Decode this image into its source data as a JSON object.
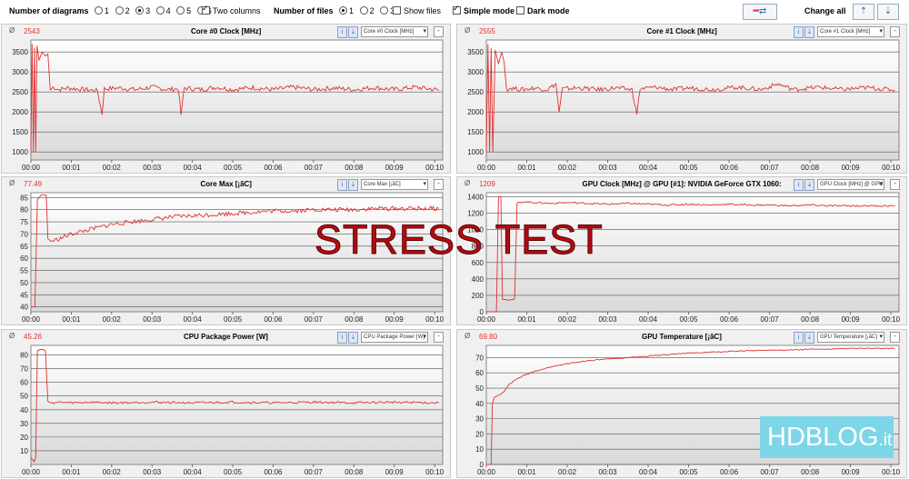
{
  "toolbar": {
    "num_diagrams_label": "Number of diagrams",
    "diagram_options": [
      "1",
      "2",
      "3",
      "4",
      "5",
      "6"
    ],
    "diagram_selected": "3",
    "two_columns_label": "Two columns",
    "two_columns_checked": true,
    "num_files_label": "Number of files",
    "file_options": [
      "1",
      "2",
      "3"
    ],
    "file_selected": "1",
    "show_files_label": "Show files",
    "show_files_checked": false,
    "simple_mode_label": "Simple mode",
    "simple_mode_checked": true,
    "dark_mode_label": "Dark mode",
    "dark_mode_checked": false,
    "change_all_label": "Change all"
  },
  "watermark_text": "STRESS TEST",
  "logo": {
    "hd": "HD",
    "blog": "BLOG",
    "tld": ".it"
  },
  "series_color": "#e0312f",
  "diagram_symbol": "Ø",
  "x_ticks": [
    "00:00",
    "00:01",
    "00:02",
    "00:03",
    "00:04",
    "00:05",
    "00:06",
    "00:07",
    "00:08",
    "00:09",
    "00:10"
  ],
  "panels": [
    {
      "title": "Core #0 Clock [MHz]",
      "current": "2543",
      "selector": "Core #0 Clock [MHz]",
      "chart_data": {
        "type": "line",
        "ylim": [
          800,
          3800
        ],
        "yticks": [
          1000,
          1500,
          2000,
          2500,
          3000,
          3500
        ],
        "points": [
          [
            0,
            1000
          ],
          [
            0.03,
            3700
          ],
          [
            0.06,
            1000
          ],
          [
            0.09,
            3600
          ],
          [
            0.12,
            1000
          ],
          [
            0.15,
            3650
          ],
          [
            0.2,
            3300
          ],
          [
            0.28,
            3500
          ],
          [
            0.36,
            3400
          ],
          [
            0.42,
            3450
          ],
          [
            0.48,
            2550
          ],
          [
            0.55,
            2620
          ],
          [
            0.7,
            2560
          ],
          [
            0.9,
            2600
          ],
          [
            1.1,
            2580
          ],
          [
            1.35,
            2560
          ],
          [
            1.65,
            2530
          ],
          [
            1.76,
            1950
          ],
          [
            1.82,
            2580
          ],
          [
            2.2,
            2600
          ],
          [
            2.6,
            2560
          ],
          [
            3.0,
            2620
          ],
          [
            3.4,
            2560
          ],
          [
            3.65,
            2580
          ],
          [
            3.72,
            1930
          ],
          [
            3.8,
            2600
          ],
          [
            4.2,
            2560
          ],
          [
            4.6,
            2620
          ],
          [
            5.0,
            2560
          ],
          [
            5.5,
            2610
          ],
          [
            6.0,
            2560
          ],
          [
            6.5,
            2620
          ],
          [
            7.0,
            2560
          ],
          [
            7.5,
            2600
          ],
          [
            8.0,
            2560
          ],
          [
            8.5,
            2610
          ],
          [
            9.0,
            2560
          ],
          [
            9.5,
            2620
          ],
          [
            10.1,
            2550
          ]
        ],
        "noise": 60
      }
    },
    {
      "title": "Core #1 Clock [MHz]",
      "current": "2555",
      "selector": "Core #1 Clock [MHz]",
      "chart_data": {
        "type": "line",
        "ylim": [
          800,
          3800
        ],
        "yticks": [
          1000,
          1500,
          2000,
          2500,
          3000,
          3500
        ],
        "points": [
          [
            0,
            1000
          ],
          [
            0.04,
            3700
          ],
          [
            0.08,
            1000
          ],
          [
            0.12,
            3600
          ],
          [
            0.16,
            1000
          ],
          [
            0.22,
            3550
          ],
          [
            0.3,
            3200
          ],
          [
            0.38,
            3500
          ],
          [
            0.44,
            3250
          ],
          [
            0.5,
            2560
          ],
          [
            0.6,
            2600
          ],
          [
            0.9,
            2560
          ],
          [
            1.2,
            2600
          ],
          [
            1.5,
            2560
          ],
          [
            1.72,
            2700
          ],
          [
            1.8,
            2000
          ],
          [
            1.88,
            2580
          ],
          [
            2.3,
            2600
          ],
          [
            2.8,
            2560
          ],
          [
            3.2,
            2600
          ],
          [
            3.6,
            2560
          ],
          [
            3.72,
            1950
          ],
          [
            3.8,
            2580
          ],
          [
            4.2,
            2620
          ],
          [
            4.6,
            2560
          ],
          [
            5.0,
            2600
          ],
          [
            5.6,
            2560
          ],
          [
            6.2,
            2620
          ],
          [
            6.8,
            2560
          ],
          [
            7.2,
            2700
          ],
          [
            7.6,
            2560
          ],
          [
            8.2,
            2620
          ],
          [
            8.8,
            2560
          ],
          [
            9.4,
            2610
          ],
          [
            10.1,
            2550
          ]
        ],
        "noise": 55
      }
    },
    {
      "title": "Core Max [¡ãC]",
      "current": "77.49",
      "selector": "Core Max [¡ãC]",
      "chart_data": {
        "type": "line",
        "ylim": [
          38,
          87
        ],
        "yticks": [
          40,
          45,
          50,
          55,
          60,
          65,
          70,
          75,
          80,
          85
        ],
        "points": [
          [
            0,
            40
          ],
          [
            0.1,
            40
          ],
          [
            0.16,
            84
          ],
          [
            0.25,
            86
          ],
          [
            0.32,
            86
          ],
          [
            0.38,
            86
          ],
          [
            0.42,
            68
          ],
          [
            0.5,
            67
          ],
          [
            0.7,
            68
          ],
          [
            1.0,
            70
          ],
          [
            1.5,
            72
          ],
          [
            2.0,
            74
          ],
          [
            2.5,
            75
          ],
          [
            3.0,
            76
          ],
          [
            3.5,
            77
          ],
          [
            4.0,
            77.5
          ],
          [
            4.5,
            78
          ],
          [
            5.0,
            78.5
          ],
          [
            5.5,
            79
          ],
          [
            6.0,
            79.5
          ],
          [
            6.5,
            79.5
          ],
          [
            7.0,
            80
          ],
          [
            7.5,
            80
          ],
          [
            8.0,
            80
          ],
          [
            8.5,
            80.5
          ],
          [
            9.0,
            80.5
          ],
          [
            9.5,
            80.5
          ],
          [
            10.1,
            80.5
          ]
        ],
        "noise": 0.9
      }
    },
    {
      "title": "GPU Clock [MHz] @ GPU [#1]: NVIDIA GeForce GTX 1060:",
      "current": "1209",
      "selector": "GPU Clock [MHz] @ GPU",
      "chart_data": {
        "type": "line",
        "ylim": [
          0,
          1450
        ],
        "yticks": [
          0,
          200,
          400,
          600,
          800,
          1000,
          1200,
          1400
        ],
        "points": [
          [
            0,
            0
          ],
          [
            0.25,
            0
          ],
          [
            0.3,
            1400
          ],
          [
            0.36,
            1400
          ],
          [
            0.4,
            150
          ],
          [
            0.45,
            150
          ],
          [
            0.6,
            150
          ],
          [
            0.7,
            150
          ],
          [
            0.76,
            1320
          ],
          [
            0.9,
            1340
          ],
          [
            1.2,
            1330
          ],
          [
            1.6,
            1320
          ],
          [
            2.0,
            1330
          ],
          [
            2.5,
            1320
          ],
          [
            3.0,
            1310
          ],
          [
            3.5,
            1320
          ],
          [
            4.0,
            1310
          ],
          [
            4.5,
            1300
          ],
          [
            5.0,
            1310
          ],
          [
            5.5,
            1300
          ],
          [
            6.0,
            1310
          ],
          [
            6.5,
            1300
          ],
          [
            7.0,
            1300
          ],
          [
            7.5,
            1290
          ],
          [
            8.0,
            1300
          ],
          [
            8.5,
            1290
          ],
          [
            9.0,
            1290
          ],
          [
            9.5,
            1290
          ],
          [
            10.1,
            1290
          ]
        ],
        "noise": 10
      }
    },
    {
      "title": "CPU Package Power [W]",
      "current": "45.26",
      "selector": "CPU Package Power [W]",
      "chart_data": {
        "type": "line",
        "ylim": [
          0,
          87
        ],
        "yticks": [
          10,
          20,
          30,
          40,
          50,
          60,
          70,
          80
        ],
        "points": [
          [
            0,
            5
          ],
          [
            0.08,
            2
          ],
          [
            0.12,
            5
          ],
          [
            0.16,
            83
          ],
          [
            0.22,
            84
          ],
          [
            0.3,
            84
          ],
          [
            0.36,
            83
          ],
          [
            0.42,
            46
          ],
          [
            0.5,
            45
          ],
          [
            0.7,
            45.5
          ],
          [
            1.0,
            45
          ],
          [
            1.5,
            45.5
          ],
          [
            2.0,
            45
          ],
          [
            3.0,
            45.5
          ],
          [
            4.0,
            45
          ],
          [
            5.0,
            45.5
          ],
          [
            6.0,
            45
          ],
          [
            7.0,
            45.5
          ],
          [
            8.0,
            45
          ],
          [
            9.0,
            45.5
          ],
          [
            10.1,
            45
          ]
        ],
        "noise": 0.8
      }
    },
    {
      "title": "GPU Temperature [¡ãC]",
      "current": "69.80",
      "selector": "GPU Temperature [¡ãC]",
      "chart_data": {
        "type": "line",
        "ylim": [
          0,
          78
        ],
        "yticks": [
          0,
          10,
          20,
          30,
          40,
          50,
          60,
          70
        ],
        "points": [
          [
            0,
            0
          ],
          [
            0.12,
            0
          ],
          [
            0.15,
            40
          ],
          [
            0.2,
            44
          ],
          [
            0.35,
            46
          ],
          [
            0.45,
            48
          ],
          [
            0.55,
            52
          ],
          [
            0.7,
            55
          ],
          [
            0.9,
            58
          ],
          [
            1.2,
            61
          ],
          [
            1.6,
            64
          ],
          [
            2.0,
            66
          ],
          [
            2.5,
            68
          ],
          [
            3.0,
            69
          ],
          [
            3.5,
            70
          ],
          [
            4.0,
            71
          ],
          [
            4.5,
            72
          ],
          [
            5.0,
            73
          ],
          [
            5.5,
            73.5
          ],
          [
            6.0,
            74
          ],
          [
            6.5,
            74.5
          ],
          [
            7.0,
            75
          ],
          [
            7.5,
            75
          ],
          [
            8.0,
            75.5
          ],
          [
            8.5,
            75.5
          ],
          [
            9.0,
            76
          ],
          [
            9.5,
            76
          ],
          [
            10.1,
            76
          ]
        ],
        "noise": 0.3
      }
    }
  ]
}
